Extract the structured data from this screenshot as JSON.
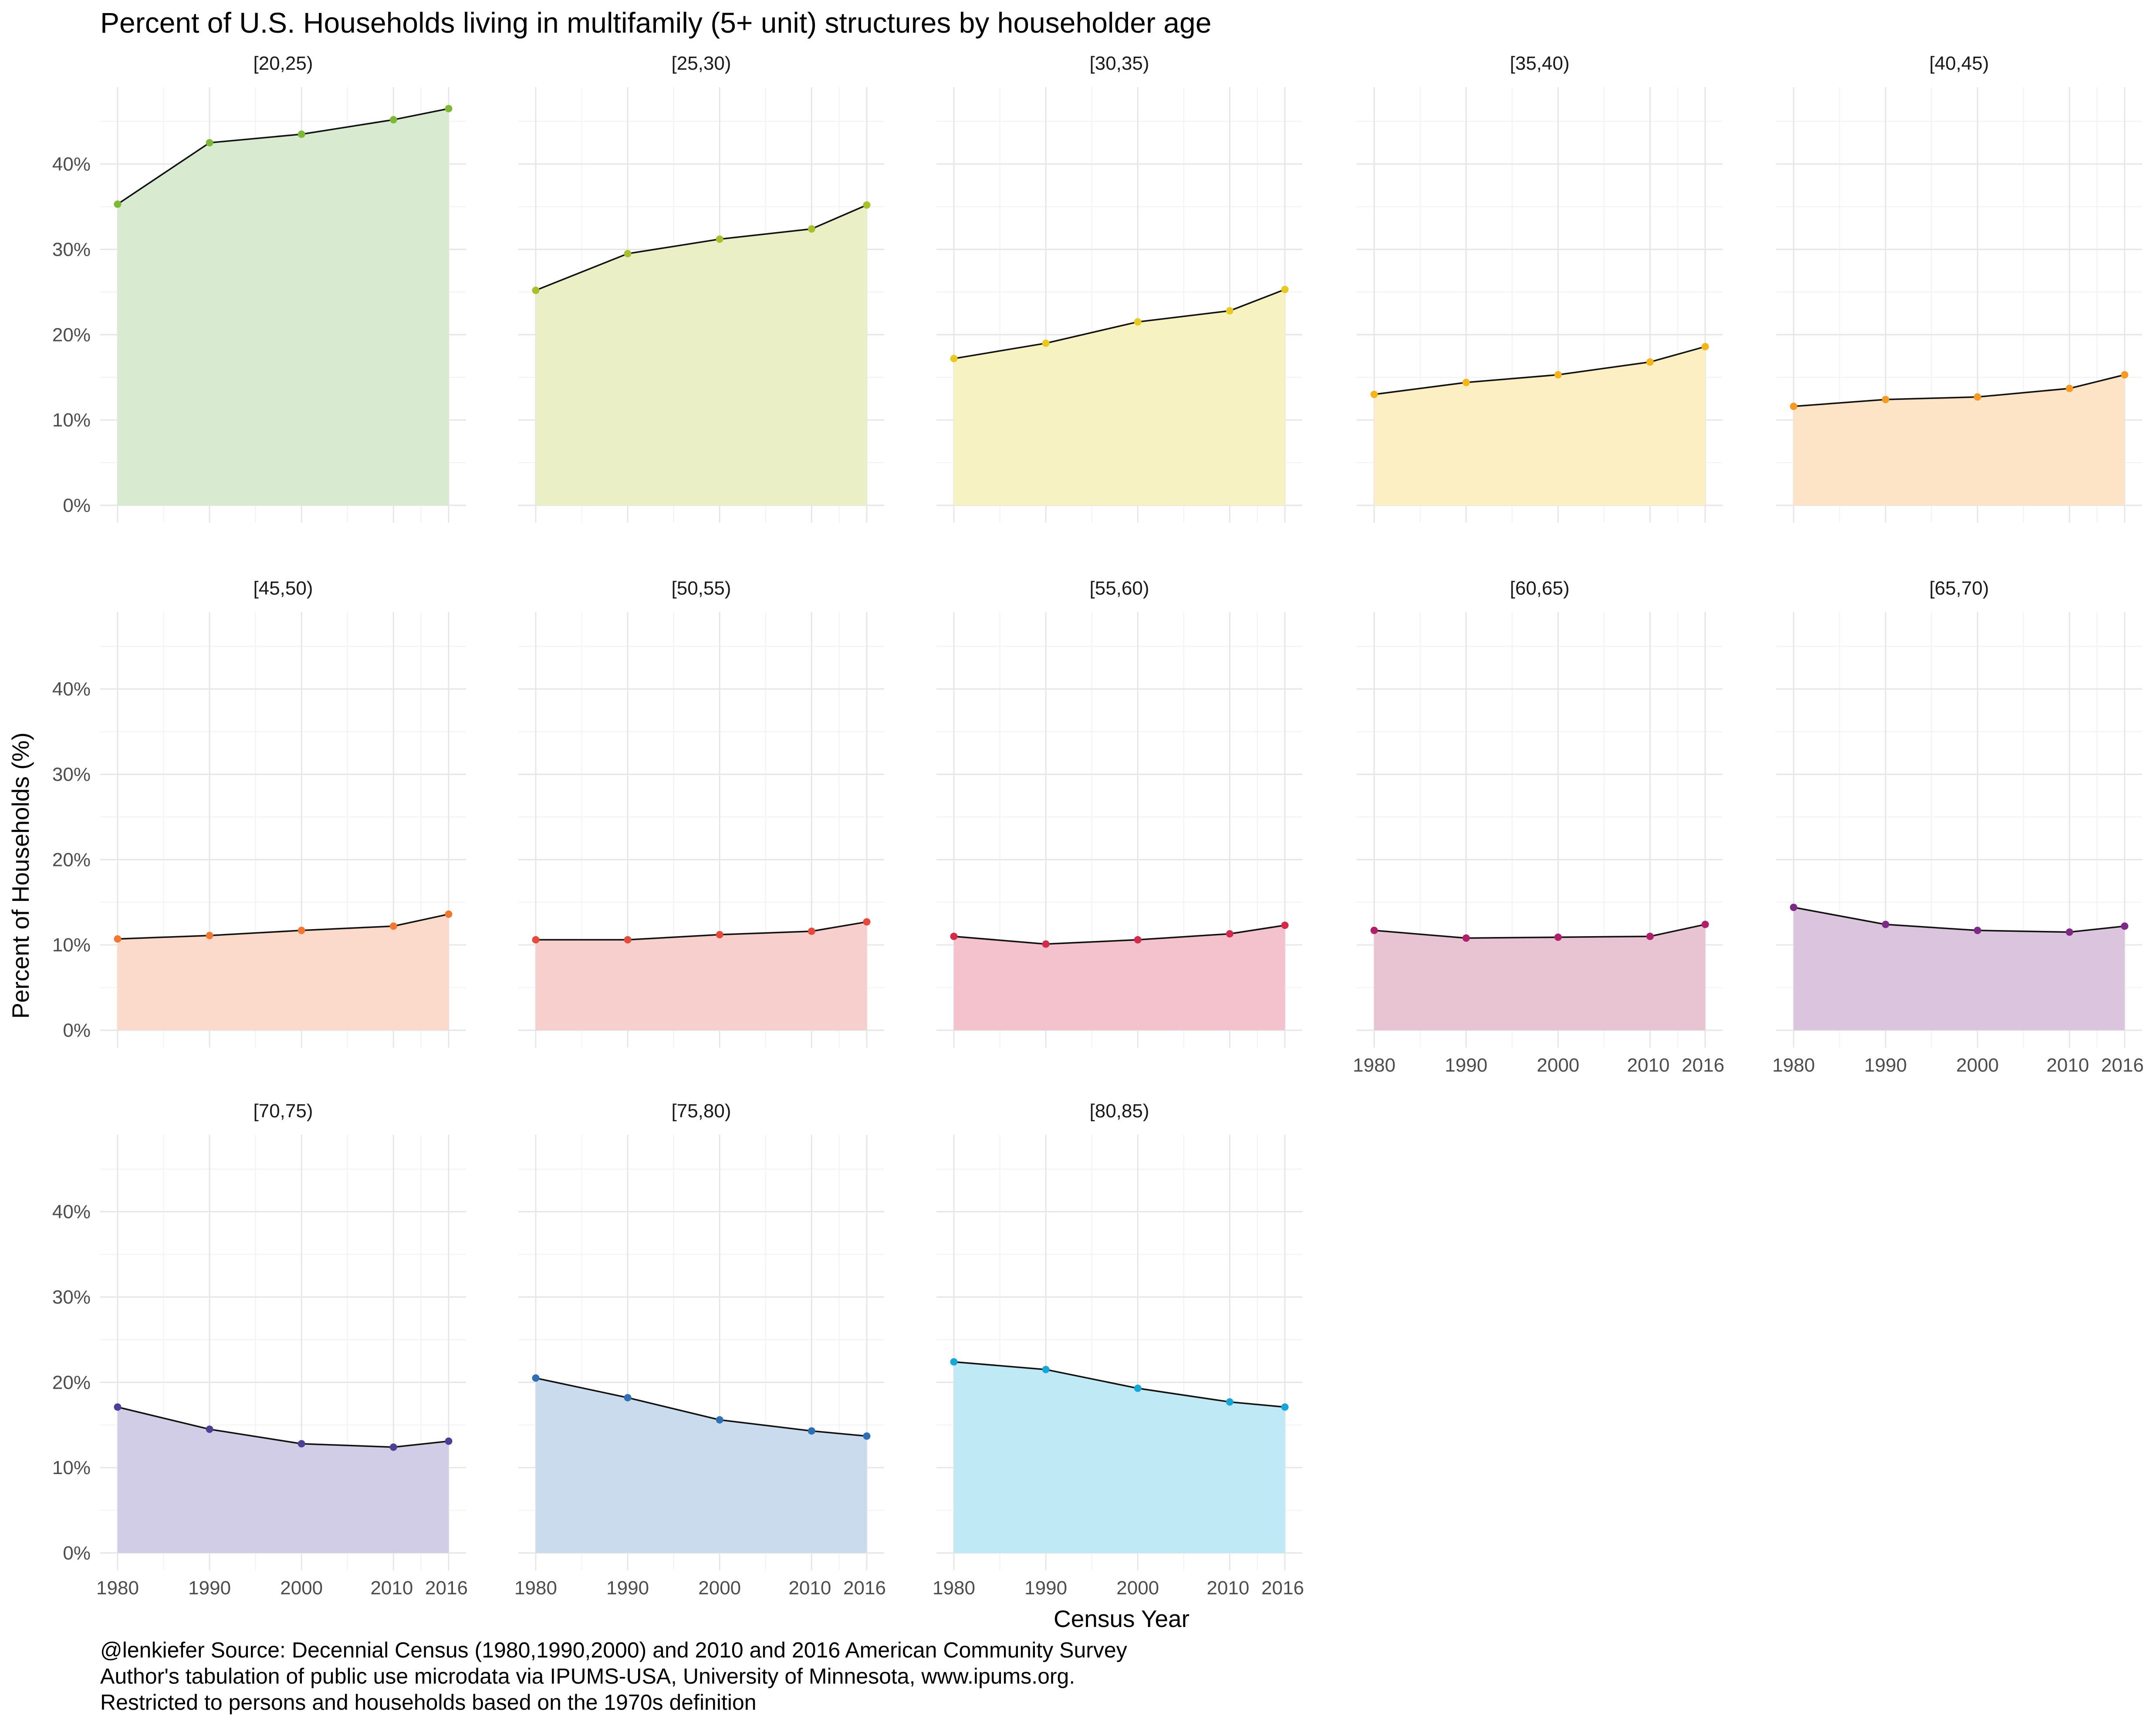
{
  "chart_data": {
    "type": "area",
    "title": "Percent of U.S. Households living in multifamily  (5+ unit) structures by householder age",
    "xlabel": "Census Year",
    "ylabel": "Percent of Households (%)",
    "x": [
      1980,
      1990,
      2000,
      2010,
      2016
    ],
    "x_ticks": [
      "1980",
      "1990",
      "2000",
      "2010",
      "2016"
    ],
    "y_ticks": [
      "0%",
      "10%",
      "20%",
      "30%",
      "40%"
    ],
    "xlim": [
      1980,
      2016
    ],
    "ylim": [
      0,
      48
    ],
    "grid": true,
    "layout": "facet_wrap, 5 columns",
    "panels": [
      {
        "label": "[20,25)",
        "color": "#7db836",
        "fill": "#d8ead0",
        "values": [
          35.3,
          42.5,
          43.5,
          45.2,
          46.5
        ]
      },
      {
        "label": "[25,30)",
        "color": "#a8c02e",
        "fill": "#eaefc6",
        "values": [
          25.2,
          29.5,
          31.2,
          32.4,
          35.2
        ]
      },
      {
        "label": "[30,35)",
        "color": "#e9c820",
        "fill": "#f7f2c2",
        "values": [
          17.2,
          19.0,
          21.5,
          22.8,
          25.3
        ]
      },
      {
        "label": "[35,40)",
        "color": "#f3b51a",
        "fill": "#fcefc4",
        "values": [
          13.0,
          14.4,
          15.3,
          16.8,
          18.6
        ]
      },
      {
        "label": "[40,45)",
        "color": "#f59a25",
        "fill": "#fde4c6",
        "values": [
          11.6,
          12.4,
          12.7,
          13.7,
          15.3
        ]
      },
      {
        "label": "[45,50)",
        "color": "#f27832",
        "fill": "#fbd9cb",
        "values": [
          10.7,
          11.1,
          11.7,
          12.2,
          13.6
        ]
      },
      {
        "label": "[50,55)",
        "color": "#e44b3c",
        "fill": "#f7cfcc",
        "values": [
          10.6,
          10.6,
          11.2,
          11.6,
          12.7
        ]
      },
      {
        "label": "[55,60)",
        "color": "#d42a4c",
        "fill": "#f3c2cc",
        "values": [
          11.0,
          10.1,
          10.6,
          11.3,
          12.3
        ]
      },
      {
        "label": "[60,65)",
        "color": "#b0206a",
        "fill": "#e8c3d2",
        "values": [
          11.7,
          10.8,
          10.9,
          11.0,
          12.4
        ]
      },
      {
        "label": "[65,70)",
        "color": "#7d2a86",
        "fill": "#dbc4de",
        "values": [
          14.4,
          12.4,
          11.7,
          11.5,
          12.2
        ]
      },
      {
        "label": "[70,75)",
        "color": "#4c3f96",
        "fill": "#d1cde6",
        "values": [
          17.1,
          14.5,
          12.8,
          12.4,
          13.1
        ]
      },
      {
        "label": "[75,80)",
        "color": "#2f6fb6",
        "fill": "#c9dbec",
        "values": [
          20.5,
          18.2,
          15.6,
          14.3,
          13.7
        ]
      },
      {
        "label": "[80,85)",
        "color": "#17a6d8",
        "fill": "#c0e9f6",
        "values": [
          22.4,
          21.5,
          19.3,
          17.7,
          17.1
        ]
      }
    ]
  },
  "caption": [
    "@lenkiefer Source: Decennial Census (1980,1990,2000) and 2010 and 2016 American Community Survey",
    "Author's tabulation of public use microdata via IPUMS-USA, University of Minnesota, www.ipums.org.",
    "Restricted to persons and households based on the 1970s definition"
  ]
}
